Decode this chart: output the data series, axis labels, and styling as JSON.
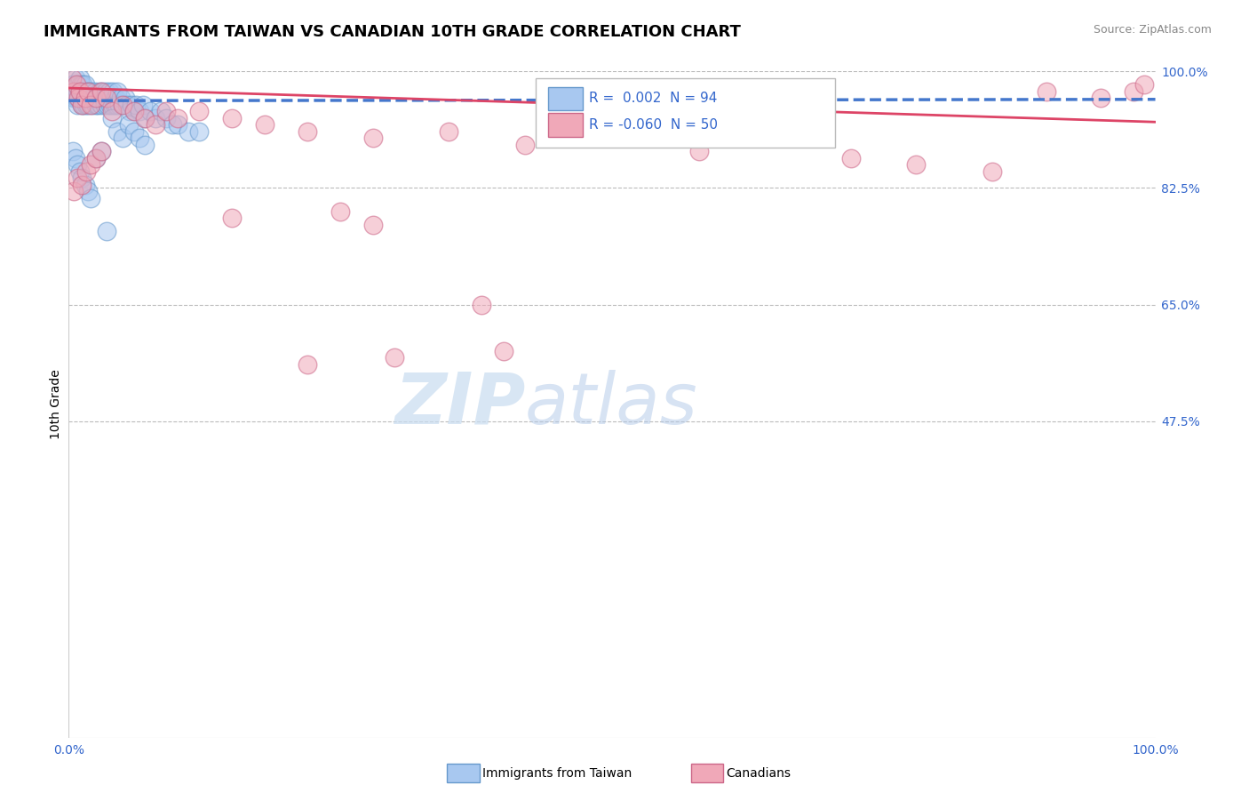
{
  "title": "IMMIGRANTS FROM TAIWAN VS CANADIAN 10TH GRADE CORRELATION CHART",
  "source_text": "Source: ZipAtlas.com",
  "ylabel": "10th Grade",
  "watermark_zip": "ZIP",
  "watermark_atlas": "atlas",
  "xlim": [
    0,
    1
  ],
  "ylim": [
    0,
    1
  ],
  "xtick_labels": [
    "0.0%",
    "100.0%"
  ],
  "xtick_positions": [
    0,
    1
  ],
  "ytick_labels": [
    "100.0%",
    "82.5%",
    "65.0%",
    "47.5%"
  ],
  "ytick_positions": [
    1.0,
    0.825,
    0.65,
    0.475
  ],
  "blue_R": " 0.002",
  "blue_N": "94",
  "pink_R": "-0.060",
  "pink_N": "50",
  "blue_fill": "#A8C8F0",
  "pink_fill": "#F0A8B8",
  "blue_edge": "#6699CC",
  "pink_edge": "#CC6688",
  "blue_line_color": "#4477CC",
  "pink_line_color": "#DD4466",
  "legend_label_blue": "Immigrants from Taiwan",
  "legend_label_pink": "Canadians",
  "title_fontsize": 13,
  "axis_label_fontsize": 10,
  "tick_fontsize": 10,
  "blue_scatter_x": [
    0.002,
    0.003,
    0.004,
    0.005,
    0.005,
    0.006,
    0.006,
    0.007,
    0.007,
    0.008,
    0.008,
    0.009,
    0.009,
    0.01,
    0.01,
    0.011,
    0.011,
    0.012,
    0.012,
    0.013,
    0.013,
    0.014,
    0.014,
    0.015,
    0.015,
    0.016,
    0.016,
    0.017,
    0.018,
    0.019,
    0.02,
    0.021,
    0.022,
    0.023,
    0.024,
    0.025,
    0.026,
    0.027,
    0.028,
    0.029,
    0.03,
    0.031,
    0.032,
    0.033,
    0.034,
    0.035,
    0.036,
    0.037,
    0.038,
    0.039,
    0.04,
    0.041,
    0.042,
    0.043,
    0.044,
    0.045,
    0.046,
    0.048,
    0.05,
    0.052,
    0.054,
    0.056,
    0.058,
    0.06,
    0.062,
    0.065,
    0.068,
    0.07,
    0.075,
    0.08,
    0.085,
    0.09,
    0.095,
    0.1,
    0.11,
    0.12,
    0.004,
    0.006,
    0.008,
    0.01,
    0.012,
    0.015,
    0.018,
    0.02,
    0.025,
    0.03,
    0.035,
    0.04,
    0.045,
    0.05,
    0.055,
    0.06,
    0.065,
    0.07
  ],
  "blue_scatter_y": [
    0.97,
    0.98,
    0.97,
    0.96,
    0.98,
    0.97,
    0.99,
    0.96,
    0.98,
    0.97,
    0.95,
    0.98,
    0.96,
    0.97,
    0.99,
    0.96,
    0.98,
    0.97,
    0.95,
    0.96,
    0.98,
    0.97,
    0.95,
    0.96,
    0.98,
    0.97,
    0.95,
    0.96,
    0.95,
    0.97,
    0.96,
    0.97,
    0.95,
    0.96,
    0.97,
    0.95,
    0.96,
    0.95,
    0.97,
    0.96,
    0.95,
    0.97,
    0.96,
    0.95,
    0.97,
    0.96,
    0.95,
    0.97,
    0.95,
    0.96,
    0.95,
    0.97,
    0.95,
    0.96,
    0.95,
    0.97,
    0.95,
    0.96,
    0.95,
    0.96,
    0.95,
    0.94,
    0.95,
    0.94,
    0.95,
    0.94,
    0.95,
    0.93,
    0.94,
    0.93,
    0.94,
    0.93,
    0.92,
    0.92,
    0.91,
    0.91,
    0.88,
    0.87,
    0.86,
    0.85,
    0.84,
    0.83,
    0.82,
    0.81,
    0.87,
    0.88,
    0.76,
    0.93,
    0.91,
    0.9,
    0.92,
    0.91,
    0.9,
    0.89
  ],
  "pink_scatter_x": [
    0.003,
    0.005,
    0.007,
    0.009,
    0.01,
    0.012,
    0.015,
    0.018,
    0.02,
    0.025,
    0.03,
    0.035,
    0.04,
    0.05,
    0.06,
    0.07,
    0.08,
    0.09,
    0.1,
    0.12,
    0.15,
    0.18,
    0.22,
    0.28,
    0.35,
    0.42,
    0.5,
    0.58,
    0.65,
    0.72,
    0.78,
    0.85,
    0.9,
    0.95,
    0.98,
    0.99,
    0.005,
    0.008,
    0.012,
    0.016,
    0.02,
    0.025,
    0.03,
    0.28,
    0.15,
    0.25,
    0.38,
    0.22,
    0.3,
    0.4
  ],
  "pink_scatter_y": [
    0.99,
    0.97,
    0.98,
    0.96,
    0.97,
    0.95,
    0.96,
    0.97,
    0.95,
    0.96,
    0.97,
    0.96,
    0.94,
    0.95,
    0.94,
    0.93,
    0.92,
    0.94,
    0.93,
    0.94,
    0.93,
    0.92,
    0.91,
    0.9,
    0.91,
    0.89,
    0.9,
    0.88,
    0.92,
    0.87,
    0.86,
    0.85,
    0.97,
    0.96,
    0.97,
    0.98,
    0.82,
    0.84,
    0.83,
    0.85,
    0.86,
    0.87,
    0.88,
    0.77,
    0.78,
    0.79,
    0.65,
    0.56,
    0.57,
    0.58
  ],
  "blue_trend_x": [
    0,
    0.3,
    1.0
  ],
  "blue_trend_y": [
    0.956,
    0.9565,
    0.958
  ],
  "pink_trend_x": [
    0,
    1
  ],
  "pink_trend_y": [
    0.975,
    0.924
  ]
}
